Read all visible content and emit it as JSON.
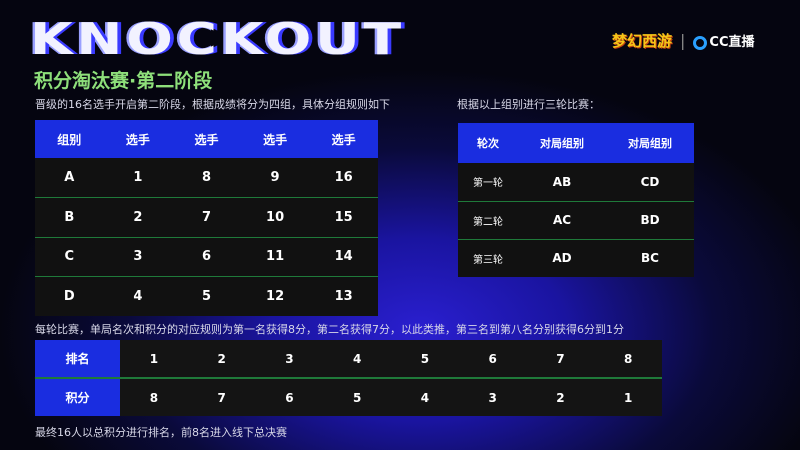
{
  "header": {
    "title": "KNOCKOUT",
    "subtitle": "积分淘汰赛·第二阶段",
    "logo_game": "梦幻西游",
    "logo_cc": "CC直播"
  },
  "groups": {
    "intro": "晋级的16名选手开启第二阶段，根据成绩将分为四组，具体分组规则如下",
    "headers": [
      "组别",
      "选手",
      "选手",
      "选手",
      "选手"
    ],
    "rows": [
      [
        "A",
        "1",
        "8",
        "9",
        "16"
      ],
      [
        "B",
        "2",
        "7",
        "10",
        "15"
      ],
      [
        "C",
        "3",
        "6",
        "11",
        "14"
      ],
      [
        "D",
        "4",
        "5",
        "12",
        "13"
      ]
    ]
  },
  "rounds": {
    "intro": "根据以上组别进行三轮比赛：",
    "headers": [
      "轮次",
      "对局组别",
      "对局组别"
    ],
    "rows": [
      [
        "第一轮",
        "AB",
        "CD"
      ],
      [
        "第二轮",
        "AC",
        "BD"
      ],
      [
        "第三轮",
        "AD",
        "BC"
      ]
    ]
  },
  "points": {
    "intro": "每轮比赛，单局名次和积分的对应规则为第一名获得8分，第二名获得7分，以此类推，第三名到第八名分别获得6分到1分",
    "rank_label": "排名",
    "ranks": [
      "1",
      "2",
      "3",
      "4",
      "5",
      "6",
      "7",
      "8"
    ],
    "score_label": "积分",
    "scores": [
      "8",
      "7",
      "6",
      "5",
      "4",
      "3",
      "2",
      "1"
    ],
    "footer": "最终16人以总积分进行排名，前8名进入线下总决赛"
  },
  "colors": {
    "accent_blue": "#1a2de0",
    "divider_green": "#1f7a3a",
    "subtitle_green": "#8ee07a"
  }
}
